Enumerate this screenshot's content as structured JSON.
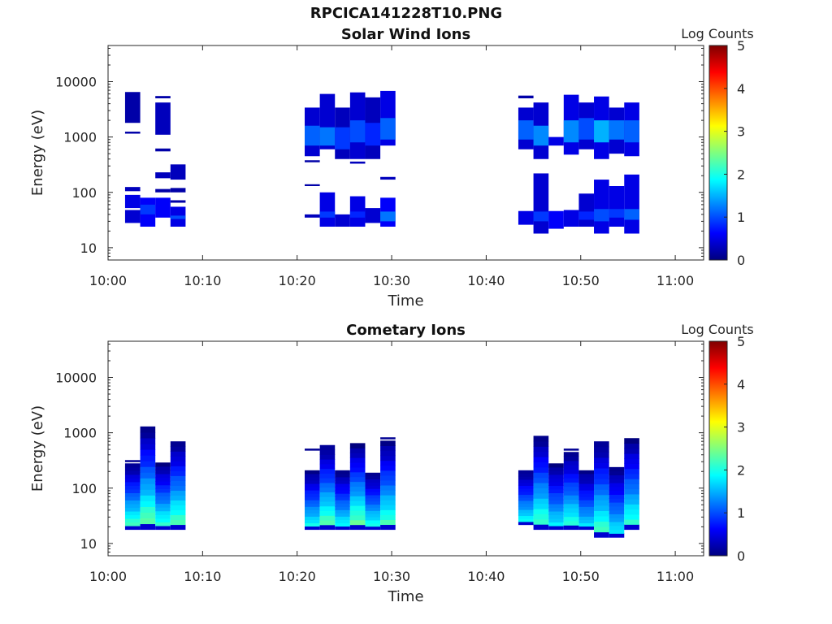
{
  "figure_title": "RPCICA141228T10.PNG",
  "colorscale": {
    "stops": [
      "#00007f",
      "#0000ff",
      "#007fff",
      "#00ffff",
      "#7fff7f",
      "#ffff00",
      "#ff7f00",
      "#ff0000",
      "#7f0000"
    ]
  },
  "chart_data": [
    {
      "type": "heatmap",
      "title": "Solar Wind Ions",
      "xlabel": "Time",
      "ylabel": "Energy (eV)",
      "yscale": "log",
      "ylim": [
        6,
        45000
      ],
      "xlim": [
        "10:00",
        "11:03"
      ],
      "xticks": [
        "10:00",
        "10:10",
        "10:20",
        "10:30",
        "10:40",
        "10:50",
        "11:00"
      ],
      "yticks": [
        "10",
        "100",
        "1000",
        "10000"
      ],
      "colorbar": {
        "label": "Log Counts",
        "range": [
          0,
          5
        ],
        "ticks": [
          "0",
          "1",
          "2",
          "3",
          "4",
          "5"
        ]
      },
      "time_bins": [
        {
          "t0": "10:01.8",
          "t1": "10:03.4",
          "cells": [
            [
              1800,
              6500,
              0.2
            ],
            [
              1150,
              1250,
              0.2
            ],
            [
              105,
              125,
              0.3
            ],
            [
              52,
              90,
              0.5
            ],
            [
              28,
              48,
              0.4
            ]
          ]
        },
        {
          "t0": "10:03.4",
          "t1": "10:05.0",
          "cells": [
            [
              24,
              80,
              0.6
            ],
            [
              40,
              60,
              0.9
            ]
          ]
        },
        {
          "t0": "10:05.0",
          "t1": "10:06.6",
          "cells": [
            [
              1100,
              4200,
              0.3
            ],
            [
              5000,
              5500,
              0.2
            ],
            [
              550,
              620,
              0.2
            ],
            [
              180,
              230,
              0.3
            ],
            [
              100,
              115,
              0.2
            ],
            [
              35,
              80,
              0.6
            ]
          ]
        },
        {
          "t0": "10:06.6",
          "t1": "10:08.2",
          "cells": [
            [
              170,
              320,
              0.3
            ],
            [
              100,
              120,
              0.2
            ],
            [
              65,
              72,
              0.2
            ],
            [
              24,
              55,
              0.5
            ],
            [
              33,
              38,
              1.0
            ]
          ]
        },
        {
          "t0": "10:20.8",
          "t1": "10:22.4",
          "cells": [
            [
              450,
              3400,
              0.4
            ],
            [
              700,
              1600,
              1.1
            ],
            [
              350,
              380,
              0.2
            ],
            [
              130,
              140,
              0.2
            ],
            [
              35,
              40,
              0.3
            ]
          ]
        },
        {
          "t0": "10:22.4",
          "t1": "10:24.0",
          "cells": [
            [
              600,
              6000,
              0.4
            ],
            [
              700,
              1500,
              1.2
            ],
            [
              24,
              100,
              0.5
            ],
            [
              35,
              45,
              0.9
            ]
          ]
        },
        {
          "t0": "10:24.0",
          "t1": "10:25.6",
          "cells": [
            [
              400,
              3400,
              0.3
            ],
            [
              600,
              1500,
              0.9
            ],
            [
              24,
              40,
              0.4
            ]
          ]
        },
        {
          "t0": "10:25.6",
          "t1": "10:27.2",
          "cells": [
            [
              400,
              6400,
              0.4
            ],
            [
              800,
              2000,
              1.0
            ],
            [
              330,
              360,
              0.3
            ],
            [
              24,
              85,
              0.5
            ],
            [
              35,
              45,
              0.8
            ]
          ]
        },
        {
          "t0": "10:27.2",
          "t1": "10:28.8",
          "cells": [
            [
              400,
              5200,
              0.3
            ],
            [
              700,
              1800,
              0.8
            ],
            [
              28,
              52,
              0.4
            ]
          ]
        },
        {
          "t0": "10:28.8",
          "t1": "10:30.4",
          "cells": [
            [
              700,
              6800,
              0.5
            ],
            [
              900,
              2200,
              1.1
            ],
            [
              170,
              190,
              0.3
            ],
            [
              24,
              80,
              0.6
            ],
            [
              30,
              45,
              1.2
            ]
          ]
        },
        {
          "t0": "10:43.4",
          "t1": "10:45.0",
          "cells": [
            [
              600,
              3400,
              0.4
            ],
            [
              900,
              2000,
              1.1
            ],
            [
              5000,
              5600,
              0.2
            ],
            [
              26,
              46,
              0.5
            ]
          ]
        },
        {
          "t0": "10:45.0",
          "t1": "10:46.6",
          "cells": [
            [
              400,
              4200,
              0.4
            ],
            [
              700,
              1600,
              1.3
            ],
            [
              18,
              220,
              0.4
            ],
            [
              30,
              45,
              0.9
            ]
          ]
        },
        {
          "t0": "10:46.6",
          "t1": "10:48.2",
          "cells": [
            [
              700,
              1000,
              0.5
            ],
            [
              22,
              46,
              0.6
            ]
          ]
        },
        {
          "t0": "10:48.2",
          "t1": "10:49.8",
          "cells": [
            [
              480,
              5800,
              0.5
            ],
            [
              800,
              2000,
              1.3
            ],
            [
              24,
              48,
              0.5
            ]
          ]
        },
        {
          "t0": "10:49.8",
          "t1": "10:51.4",
          "cells": [
            [
              600,
              4200,
              0.4
            ],
            [
              900,
              2200,
              1.0
            ],
            [
              24,
              95,
              0.4
            ],
            [
              32,
              45,
              0.8
            ]
          ]
        },
        {
          "t0": "10:51.4",
          "t1": "10:53.0",
          "cells": [
            [
              400,
              5400,
              0.5
            ],
            [
              800,
              2000,
              1.5
            ],
            [
              18,
              170,
              0.5
            ],
            [
              30,
              50,
              1.0
            ]
          ]
        },
        {
          "t0": "10:53.0",
          "t1": "10:54.6",
          "cells": [
            [
              500,
              3400,
              0.4
            ],
            [
              900,
              2000,
              1.2
            ],
            [
              24,
              130,
              0.5
            ],
            [
              35,
              50,
              0.9
            ]
          ]
        },
        {
          "t0": "10:54.6",
          "t1": "10:56.2",
          "cells": [
            [
              450,
              4200,
              0.5
            ],
            [
              800,
              2000,
              1.1
            ],
            [
              18,
              210,
              0.5
            ],
            [
              32,
              50,
              1.1
            ]
          ]
        }
      ]
    },
    {
      "type": "heatmap",
      "title": "Cometary Ions",
      "xlabel": "Time",
      "ylabel": "Energy (eV)",
      "yscale": "log",
      "ylim": [
        6,
        45000
      ],
      "xlim": [
        "10:00",
        "11:03"
      ],
      "xticks": [
        "10:00",
        "10:10",
        "10:20",
        "10:30",
        "10:40",
        "10:50",
        "11:00"
      ],
      "yticks": [
        "10",
        "100",
        "1000",
        "10000"
      ],
      "colorbar": {
        "label": "Log Counts",
        "range": [
          0,
          5
        ],
        "ticks": [
          "0",
          "1",
          "2",
          "3",
          "4",
          "5"
        ]
      },
      "time_bins": [
        {
          "t0": "10:01.8",
          "t1": "10:03.4",
          "top": 280,
          "bottom": 18,
          "peak": 2.3,
          "cap": 310
        },
        {
          "t0": "10:03.4",
          "t1": "10:05.0",
          "top": 1300,
          "bottom": 18,
          "peak": 2.5
        },
        {
          "t0": "10:05.0",
          "t1": "10:06.6",
          "top": 290,
          "bottom": 18,
          "peak": 2.2
        },
        {
          "t0": "10:06.6",
          "t1": "10:08.2",
          "top": 700,
          "bottom": 18,
          "peak": 2.4
        },
        {
          "t0": "10:20.8",
          "t1": "10:22.4",
          "top": 210,
          "bottom": 18,
          "peak": 2.0,
          "cap": 500
        },
        {
          "t0": "10:22.4",
          "t1": "10:24.0",
          "top": 600,
          "bottom": 18,
          "peak": 2.4
        },
        {
          "t0": "10:24.0",
          "t1": "10:25.6",
          "top": 210,
          "bottom": 18,
          "peak": 2.0
        },
        {
          "t0": "10:25.6",
          "t1": "10:27.2",
          "top": 650,
          "bottom": 18,
          "peak": 2.5
        },
        {
          "t0": "10:27.2",
          "t1": "10:28.8",
          "top": 190,
          "bottom": 18,
          "peak": 2.1
        },
        {
          "t0": "10:28.8",
          "t1": "10:30.4",
          "top": 720,
          "bottom": 18,
          "peak": 2.3,
          "cap": 800
        },
        {
          "t0": "10:43.4",
          "t1": "10:45.0",
          "top": 210,
          "bottom": 22,
          "peak": 2.0
        },
        {
          "t0": "10:45.0",
          "t1": "10:46.6",
          "top": 880,
          "bottom": 18,
          "peak": 2.3
        },
        {
          "t0": "10:46.6",
          "t1": "10:48.2",
          "top": 280,
          "bottom": 18,
          "peak": 1.9
        },
        {
          "t0": "10:48.2",
          "t1": "10:49.8",
          "top": 450,
          "bottom": 18,
          "peak": 2.2,
          "cap": 500
        },
        {
          "t0": "10:49.8",
          "t1": "10:51.4",
          "top": 210,
          "bottom": 18,
          "peak": 1.8
        },
        {
          "t0": "10:51.4",
          "t1": "10:53.0",
          "top": 700,
          "bottom": 13,
          "peak": 2.3
        },
        {
          "t0": "10:53.0",
          "t1": "10:54.6",
          "top": 240,
          "bottom": 13,
          "peak": 1.9
        },
        {
          "t0": "10:54.6",
          "t1": "10:56.2",
          "top": 800,
          "bottom": 18,
          "peak": 2.2
        }
      ]
    }
  ]
}
